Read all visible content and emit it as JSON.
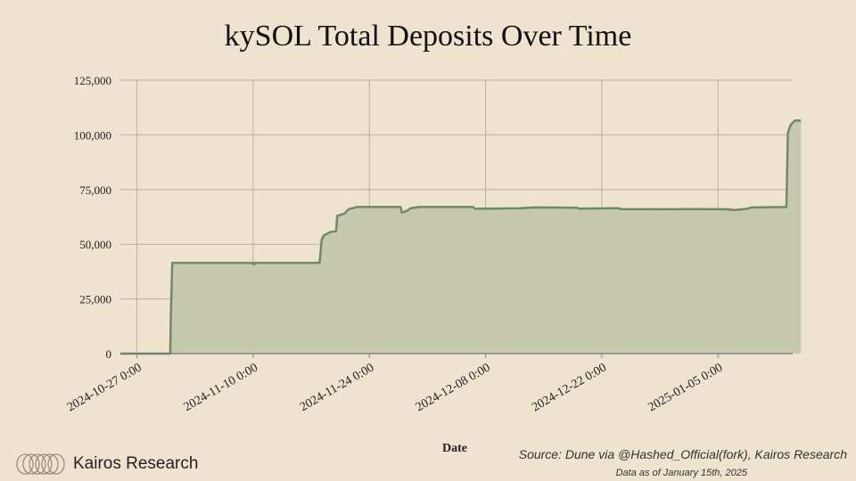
{
  "chart_data": {
    "type": "area",
    "title": "kySOL Total Deposits Over Time",
    "xlabel": "Date",
    "ylabel": "",
    "x_range": [
      "2024-10-25",
      "2025-01-14"
    ],
    "ylim": [
      0,
      125000
    ],
    "yticks": [
      0,
      25000,
      50000,
      75000,
      100000,
      125000
    ],
    "ytick_labels": [
      "0",
      "25,000",
      "50,000",
      "75,000",
      "100,000",
      "125,000"
    ],
    "xticks": [
      "2024-10-27",
      "2024-11-10",
      "2024-11-24",
      "2024-12-08",
      "2024-12-22",
      "2025-01-05"
    ],
    "xtick_labels": [
      "2024-10-27 0:00",
      "2024-11-10 0:00",
      "2024-11-24 0:00",
      "2024-12-08 0:00",
      "2024-12-22 0:00",
      "2025-01-05 0:00"
    ],
    "grid": true,
    "line_color": "#6f8a67",
    "fill_color": "#c6c9ae",
    "series": [
      {
        "points": [
          [
            "2024-10-25 00:00",
            0
          ],
          [
            "2024-10-31 00:00",
            0
          ],
          [
            "2024-10-31 02:00",
            17000
          ],
          [
            "2024-10-31 06:00",
            41500
          ],
          [
            "2024-11-10 00:00",
            41500
          ],
          [
            "2024-11-10 02:00",
            40800
          ],
          [
            "2024-11-10 06:00",
            41500
          ],
          [
            "2024-11-18 00:00",
            41500
          ],
          [
            "2024-11-18 06:00",
            52000
          ],
          [
            "2024-11-18 12:00",
            54000
          ],
          [
            "2024-11-19 06:00",
            55500
          ],
          [
            "2024-11-20 00:00",
            56000
          ],
          [
            "2024-11-20 03:00",
            63000
          ],
          [
            "2024-11-21 00:00",
            64000
          ],
          [
            "2024-11-21 12:00",
            66000
          ],
          [
            "2024-11-22 12:00",
            67000
          ],
          [
            "2024-11-27 18:00",
            67000
          ],
          [
            "2024-11-27 22:00",
            64500
          ],
          [
            "2024-11-28 12:00",
            65200
          ],
          [
            "2024-11-29 00:00",
            66500
          ],
          [
            "2024-11-30 00:00",
            67000
          ],
          [
            "2024-12-06 12:00",
            67000
          ],
          [
            "2024-12-06 18:00",
            66200
          ],
          [
            "2024-12-12 00:00",
            66400
          ],
          [
            "2024-12-14 00:00",
            66800
          ],
          [
            "2024-12-19 00:00",
            66700
          ],
          [
            "2024-12-19 06:00",
            66300
          ],
          [
            "2024-12-24 00:00",
            66500
          ],
          [
            "2024-12-24 06:00",
            66100
          ],
          [
            "2025-01-06 00:00",
            66000
          ],
          [
            "2025-01-07 00:00",
            65600
          ],
          [
            "2025-01-08 12:00",
            66200
          ],
          [
            "2025-01-09 00:00",
            66800
          ],
          [
            "2025-01-13 06:00",
            67000
          ],
          [
            "2025-01-13 10:00",
            101000
          ],
          [
            "2025-01-13 18:00",
            104500
          ],
          [
            "2025-01-14 06:00",
            106500
          ],
          [
            "2025-01-14 23:59",
            106500
          ]
        ]
      }
    ]
  },
  "footer": {
    "brand": "Kairos Research",
    "logo_icon": "kairos-rings-logo-icon",
    "source": "Source: Dune via @Hashed_Official(fork), Kairos Research",
    "as_of": "Data as of January 15th, 2025"
  }
}
